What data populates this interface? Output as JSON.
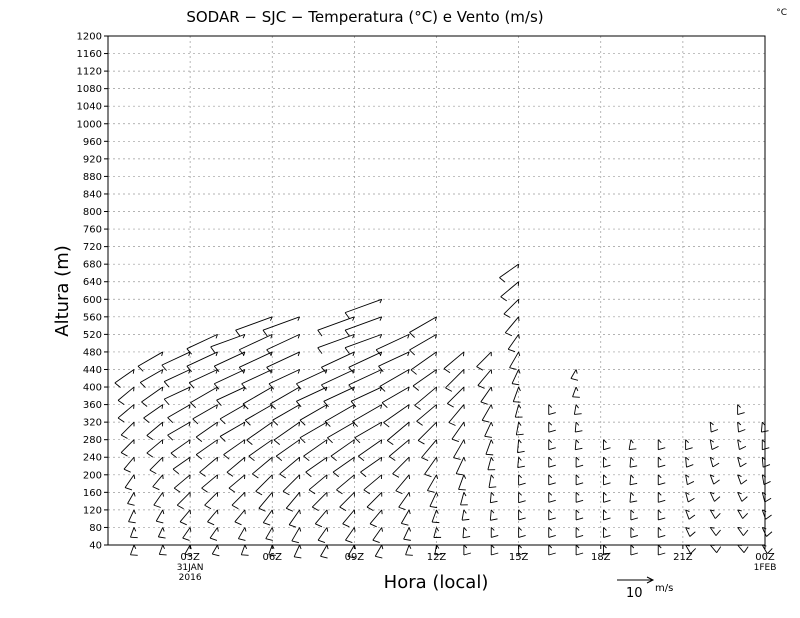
{
  "chart_data": {
    "type": "wind-barb-profile",
    "title": "SODAR − SJC − Temperatura (°C) e Vento (m/s)",
    "corner_unit": "°C",
    "xlabel": "Hora (local)",
    "ylabel": "Altura (m)",
    "ylim": [
      40,
      1200
    ],
    "yticks": [
      40,
      80,
      120,
      160,
      200,
      240,
      280,
      320,
      360,
      400,
      440,
      480,
      520,
      560,
      600,
      640,
      680,
      720,
      760,
      800,
      840,
      880,
      920,
      960,
      1000,
      1040,
      1080,
      1120,
      1160,
      1200
    ],
    "xlim_hours": [
      0,
      24
    ],
    "xticks": [
      {
        "hour": 3,
        "label": "03Z",
        "sub": [
          "31JAN",
          "2016"
        ]
      },
      {
        "hour": 6,
        "label": "06Z",
        "sub": []
      },
      {
        "hour": 9,
        "label": "09Z",
        "sub": []
      },
      {
        "hour": 12,
        "label": "12Z",
        "sub": []
      },
      {
        "hour": 15,
        "label": "15Z",
        "sub": []
      },
      {
        "hour": 18,
        "label": "18Z",
        "sub": []
      },
      {
        "hour": 21,
        "label": "21Z",
        "sub": []
      },
      {
        "hour": 24,
        "label": "00Z",
        "sub": [
          "1FEB"
        ]
      }
    ],
    "grid": true,
    "reference_vector": {
      "speed": 10,
      "number": "10",
      "unit": "m/s"
    },
    "profiles": [
      {
        "hour": 0.95,
        "top": 440,
        "speed": [
          4,
          4,
          5,
          5,
          6,
          6,
          7,
          7,
          8,
          8,
          9,
          9,
          10,
          10
        ],
        "dir": [
          200,
          200,
          205,
          210,
          215,
          220,
          225,
          225,
          230,
          230,
          235,
          235,
          240,
          240
        ]
      },
      {
        "hour": 2.0,
        "top": 480,
        "speed": [
          3,
          4,
          5,
          6,
          6,
          7,
          8,
          8,
          9,
          10,
          10,
          11,
          11,
          12,
          12
        ],
        "dir": [
          200,
          205,
          210,
          215,
          220,
          225,
          230,
          230,
          235,
          235,
          240,
          240,
          245,
          245,
          245
        ]
      },
      {
        "hour": 3.0,
        "top": 490,
        "speed": [
          4,
          5,
          6,
          7,
          8,
          8,
          9,
          10,
          10,
          11,
          11,
          12,
          12,
          12,
          13
        ],
        "dir": [
          210,
          215,
          220,
          225,
          230,
          235,
          235,
          240,
          240,
          245,
          245,
          245,
          250,
          250,
          250
        ]
      },
      {
        "hour": 4.0,
        "top": 520,
        "speed": [
          4,
          5,
          6,
          7,
          8,
          9,
          10,
          10,
          11,
          12,
          12,
          13,
          13,
          13,
          14,
          14
        ],
        "dir": [
          210,
          215,
          220,
          225,
          230,
          230,
          235,
          235,
          240,
          240,
          245,
          245,
          245,
          250,
          250,
          250
        ]
      },
      {
        "hour": 5.0,
        "top": 540,
        "speed": [
          4,
          5,
          6,
          7,
          8,
          9,
          10,
          11,
          11,
          12,
          13,
          13,
          14,
          14,
          14,
          15,
          15
        ],
        "dir": [
          200,
          210,
          220,
          225,
          230,
          230,
          235,
          240,
          240,
          245,
          245,
          245,
          250,
          250,
          250,
          250,
          250
        ]
      },
      {
        "hour": 6.0,
        "top": 580,
        "speed": [
          4,
          5,
          6,
          8,
          9,
          10,
          11,
          12,
          12,
          13,
          13,
          14,
          14,
          15,
          15,
          15,
          16,
          16
        ],
        "dir": [
          200,
          210,
          215,
          220,
          225,
          230,
          235,
          235,
          240,
          240,
          245,
          245,
          245,
          250,
          250,
          250,
          250,
          250
        ]
      },
      {
        "hour": 7.0,
        "top": 560,
        "speed": [
          5,
          6,
          7,
          8,
          9,
          10,
          11,
          12,
          12,
          13,
          13,
          14,
          14,
          15,
          15,
          15,
          16
        ],
        "dir": [
          205,
          210,
          215,
          220,
          225,
          230,
          235,
          235,
          240,
          240,
          245,
          245,
          245,
          250,
          250,
          250,
          250
        ]
      },
      {
        "hour": 8.0,
        "top": 440,
        "speed": [
          5,
          6,
          7,
          8,
          9,
          10,
          11,
          12,
          12,
          13,
          13,
          14,
          14,
          15
        ],
        "dir": [
          210,
          215,
          220,
          225,
          230,
          235,
          235,
          240,
          240,
          245,
          245,
          245,
          250,
          250
        ]
      },
      {
        "hour": 9.0,
        "top": 560,
        "speed": [
          5,
          6,
          7,
          8,
          9,
          10,
          11,
          12,
          13,
          13,
          14,
          14,
          15,
          15,
          15,
          16,
          16
        ],
        "dir": [
          210,
          215,
          220,
          225,
          230,
          235,
          235,
          240,
          240,
          245,
          245,
          245,
          250,
          250,
          250,
          250,
          250
        ]
      },
      {
        "hour": 10.0,
        "top": 600,
        "speed": [
          5,
          6,
          7,
          8,
          9,
          10,
          11,
          12,
          13,
          13,
          14,
          14,
          15,
          15,
          15,
          16,
          16,
          16,
          17
        ],
        "dir": [
          210,
          215,
          220,
          225,
          230,
          235,
          235,
          240,
          240,
          245,
          245,
          245,
          250,
          250,
          250,
          250,
          250,
          250,
          250
        ]
      },
      {
        "hour": 11.0,
        "top": 540,
        "speed": [
          4,
          5,
          6,
          7,
          8,
          9,
          10,
          11,
          12,
          12,
          13,
          13,
          14,
          14,
          14,
          15,
          15
        ],
        "dir": [
          200,
          205,
          210,
          215,
          220,
          225,
          230,
          230,
          235,
          240,
          240,
          245,
          245,
          245,
          250,
          250,
          250
        ]
      },
      {
        "hour": 12.0,
        "top": 580,
        "speed": [
          3,
          4,
          5,
          6,
          7,
          8,
          9,
          10,
          10,
          11,
          11,
          12,
          12,
          12,
          13,
          13,
          13,
          14
        ],
        "dir": [
          190,
          195,
          200,
          205,
          210,
          215,
          220,
          225,
          230,
          230,
          235,
          235,
          240,
          240,
          240,
          245,
          245,
          245
        ]
      },
      {
        "hour": 13.0,
        "top": 480,
        "speed": [
          3,
          4,
          4,
          5,
          6,
          7,
          8,
          8,
          9,
          9,
          10,
          10,
          11,
          11,
          11
        ],
        "dir": [
          180,
          185,
          190,
          195,
          200,
          205,
          210,
          215,
          220,
          225,
          225,
          230,
          230,
          235,
          235
        ]
      },
      {
        "hour": 14.0,
        "top": 500,
        "speed": [
          3,
          3,
          4,
          4,
          5,
          5,
          6,
          6,
          7,
          7,
          8,
          8,
          8,
          9,
          9,
          9
        ],
        "dir": [
          180,
          180,
          185,
          185,
          190,
          195,
          200,
          205,
          210,
          215,
          220,
          225,
          225,
          230,
          230,
          230
        ]
      },
      {
        "hour": 15.0,
        "top": 680,
        "speed": [
          3,
          3,
          3,
          4,
          4,
          4,
          5,
          5,
          5,
          6,
          6,
          7,
          7,
          8,
          8,
          9,
          9,
          10,
          10,
          11,
          11,
          12
        ],
        "dir": [
          180,
          180,
          180,
          180,
          180,
          185,
          185,
          190,
          195,
          200,
          205,
          210,
          215,
          220,
          225,
          230,
          235,
          240,
          240,
          245,
          245,
          250
        ]
      },
      {
        "hour": 16.1,
        "top": 360,
        "speed": [
          2,
          2,
          2,
          3,
          3,
          3,
          3,
          3,
          3,
          3,
          3
        ],
        "dir": [
          180,
          180,
          180,
          180,
          180,
          180,
          180,
          180,
          180,
          180,
          180
        ]
      },
      {
        "hour": 17.1,
        "top": 440,
        "speed": [
          2,
          2,
          2,
          3,
          3,
          3,
          3,
          3,
          3,
          4,
          4,
          5,
          6,
          6
        ],
        "dir": [
          180,
          180,
          180,
          180,
          180,
          180,
          185,
          185,
          190,
          200,
          210,
          220,
          225,
          230
        ]
      },
      {
        "hour": 18.1,
        "top": 280,
        "speed": [
          2,
          2,
          3,
          3,
          3,
          3,
          3,
          3
        ],
        "dir": [
          180,
          180,
          180,
          180,
          180,
          180,
          180,
          180
        ]
      },
      {
        "hour": 19.1,
        "top": 280,
        "speed": [
          2,
          2,
          3,
          3,
          3,
          3,
          3,
          3
        ],
        "dir": [
          180,
          180,
          180,
          185,
          185,
          185,
          190,
          190
        ]
      },
      {
        "hour": 20.1,
        "top": 280,
        "speed": [
          2,
          2,
          2,
          3,
          3,
          3,
          3,
          3
        ],
        "dir": [
          180,
          180,
          180,
          180,
          180,
          180,
          180,
          180
        ]
      },
      {
        "hour": 21.1,
        "top": 300,
        "speed": [
          2,
          3,
          3,
          3,
          3,
          3,
          3,
          3,
          3
        ],
        "dir": [
          150,
          155,
          160,
          165,
          170,
          175,
          180,
          180,
          180
        ]
      },
      {
        "hour": 22.0,
        "top": 320,
        "speed": [
          2,
          3,
          3,
          3,
          3,
          3,
          3,
          3,
          3,
          3
        ],
        "dir": [
          140,
          145,
          150,
          155,
          160,
          165,
          170,
          175,
          180,
          180
        ]
      },
      {
        "hour": 23.0,
        "top": 360,
        "speed": [
          2,
          3,
          3,
          3,
          3,
          3,
          3,
          3,
          3,
          3,
          3
        ],
        "dir": [
          140,
          145,
          150,
          155,
          160,
          165,
          170,
          175,
          180,
          185,
          190
        ]
      },
      {
        "hour": 23.9,
        "top": 340,
        "speed": [
          2,
          2,
          3,
          3,
          3,
          3,
          3,
          3,
          3,
          3
        ],
        "dir": [
          150,
          155,
          160,
          165,
          170,
          175,
          180,
          185,
          190,
          200
        ]
      }
    ]
  }
}
